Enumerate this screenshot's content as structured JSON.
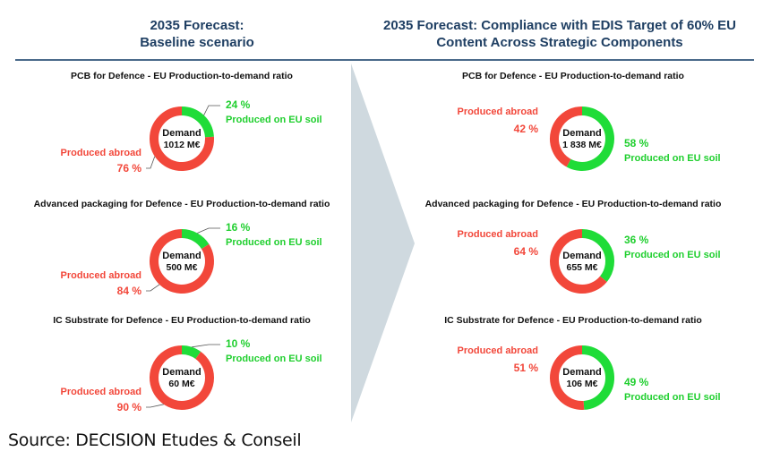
{
  "headers": {
    "left": [
      "2035 Forecast:",
      "Baseline scenario"
    ],
    "right": [
      "2035 Forecast: Compliance with EDIS Target of 60% EU",
      "Content Across Strategic Components"
    ]
  },
  "colors": {
    "eu": "#1fdc38",
    "abroad": "#f2473a",
    "header": "#1f3f63",
    "arrow": "#cfd9df"
  },
  "labels": {
    "eu": "Produced on EU soil",
    "abroad": "Produced abroad",
    "demand": "Demand"
  },
  "source": "Source: DECISION Etudes & Conseil",
  "chart_data": [
    {
      "type": "pie",
      "scenario": "Baseline",
      "title": "PCB for Defence - EU Production-to-demand ratio",
      "demand": "1012 M€",
      "eu_pct": 24,
      "abroad_pct": 76,
      "eu_label": "24 %",
      "abroad_label": "76 %"
    },
    {
      "type": "pie",
      "scenario": "Baseline",
      "title": "Advanced packaging for Defence - EU Production-to-demand ratio",
      "demand": "500 M€",
      "eu_pct": 16,
      "abroad_pct": 84,
      "eu_label": "16 %",
      "abroad_label": "84 %"
    },
    {
      "type": "pie",
      "scenario": "Baseline",
      "title": "IC Substrate for Defence - EU Production-to-demand ratio",
      "demand": "60 M€",
      "eu_pct": 10,
      "abroad_pct": 90,
      "eu_label": "10 %",
      "abroad_label": "90 %"
    },
    {
      "type": "pie",
      "scenario": "EDIS 60% target",
      "title": "PCB for Defence - EU Production-to-demand ratio",
      "demand": "1 838 M€",
      "eu_pct": 58,
      "abroad_pct": 42,
      "eu_label": "58 %",
      "abroad_label": "42 %"
    },
    {
      "type": "pie",
      "scenario": "EDIS 60% target",
      "title": "Advanced packaging for Defence - EU Production-to-demand ratio",
      "demand": "655 M€",
      "eu_pct": 36,
      "abroad_pct": 64,
      "eu_label": "36 %",
      "abroad_label": "64 %"
    },
    {
      "type": "pie",
      "scenario": "EDIS 60% target",
      "title": "IC Substrate for Defence - EU Production-to-demand ratio",
      "demand": "106 M€",
      "eu_pct": 49,
      "abroad_pct": 51,
      "eu_label": "49 %",
      "abroad_label": "51 %"
    }
  ]
}
